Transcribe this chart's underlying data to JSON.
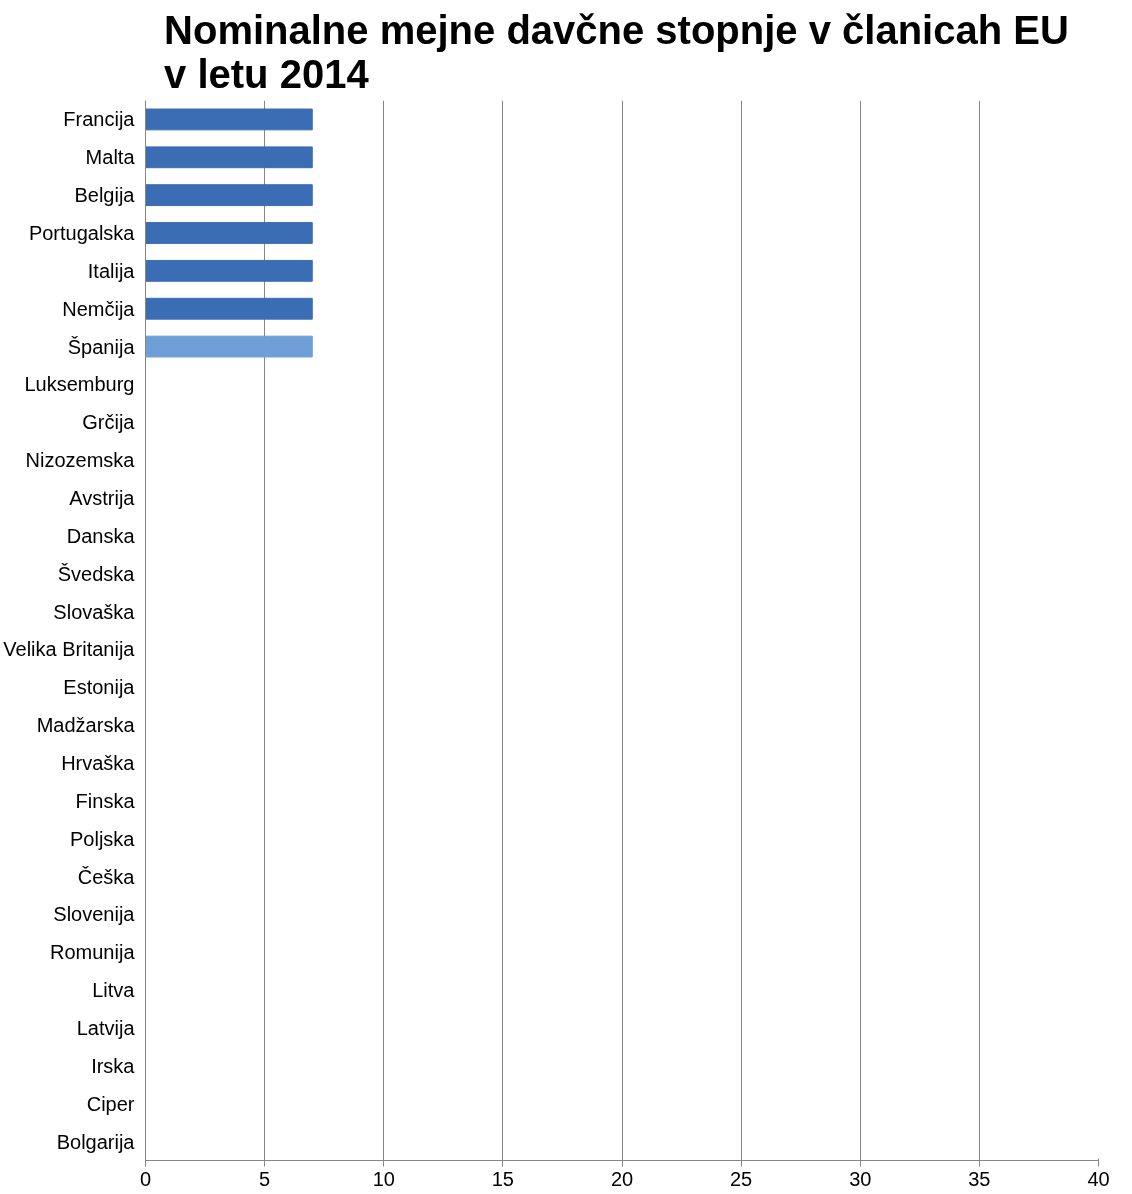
{
  "chart_data": {
    "type": "bar",
    "orientation": "horizontal",
    "title": "Nominalne  mejne davčne stopnje v članicah EU v letu 2014",
    "categories": [
      "Francija",
      "Malta",
      "Belgija",
      "Portugalska",
      "Italija",
      "Nemčija",
      "Španija",
      "Luksemburg",
      "Grčija",
      "Nizozemska",
      "Avstrija",
      "Danska",
      "Švedska",
      "Slovaška",
      "Velika Britanija",
      "Estonija",
      "Madžarska",
      "Hrvaška",
      "Finska",
      "Poljska",
      "Češka",
      "Slovenija",
      "Romunija",
      "Litva",
      "Latvija",
      "Irska",
      "Ciper",
      "Bolgarija"
    ],
    "values": [
      7,
      7,
      7,
      7,
      7,
      7,
      7,
      null,
      null,
      null,
      null,
      null,
      null,
      null,
      null,
      null,
      null,
      null,
      null,
      null,
      null,
      null,
      null,
      null,
      null,
      null,
      null,
      null
    ],
    "colors": [
      "#3a6db3",
      "#3a6db3",
      "#3a6db3",
      "#3a6db3",
      "#3a6db3",
      "#3a6db3",
      "#6f9fd8",
      "#3a6db3",
      "#3a6db3",
      "#3a6db3",
      "#3a6db3",
      "#3a6db3",
      "#3a6db3",
      "#3a6db3",
      "#3a6db3",
      "#3a6db3",
      "#3a6db3",
      "#3a6db3",
      "#3a6db3",
      "#3a6db3",
      "#3a6db3",
      "#3a6db3",
      "#3a6db3",
      "#3a6db3",
      "#3a6db3",
      "#3a6db3",
      "#3a6db3",
      "#3a6db3"
    ],
    "xlim": [
      0,
      40
    ],
    "xticks": [
      0,
      5,
      10,
      15,
      20,
      25,
      30,
      35,
      40
    ],
    "grid": "x"
  }
}
